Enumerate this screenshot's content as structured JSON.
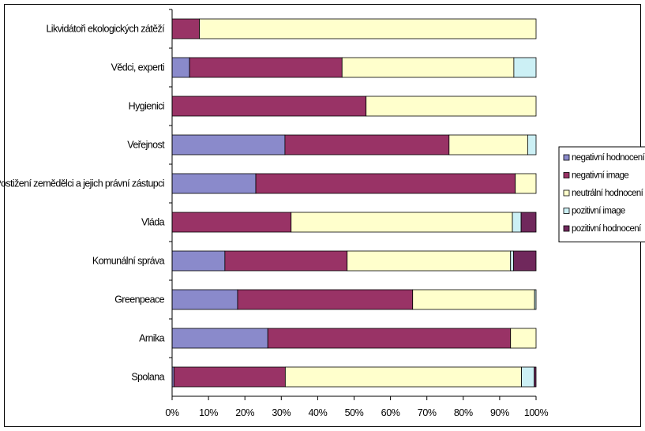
{
  "chart_data": {
    "type": "bar",
    "orientation": "horizontal",
    "stacked": "percent",
    "categories": [
      "Likvidátoři ekologických zátěží",
      "Vědci, experti",
      "Hygienici",
      "Veřejnost",
      "Postižení zemědělci a jejich právní zástupci",
      "Vláda",
      "Komunální správa",
      "Greenpeace",
      "Arnika",
      "Spolana"
    ],
    "series": [
      {
        "name": "negativní hodnocení",
        "color": "#8A8ACB",
        "values": [
          0,
          4.8,
          0,
          31,
          23,
          0,
          14.5,
          18,
          26.3,
          0.5
        ]
      },
      {
        "name": "negativní image",
        "color": "#993366",
        "values": [
          7.5,
          41.9,
          53.3,
          45.1,
          71.3,
          32.7,
          33.6,
          48.1,
          66.7,
          30.6
        ]
      },
      {
        "name": "neutrální hodnocení",
        "color": "#FFFFCC",
        "values": [
          92.5,
          47.2,
          46.7,
          21.6,
          5.7,
          60.8,
          44.9,
          33.5,
          7,
          64.9
        ]
      },
      {
        "name": "pozitivní image",
        "color": "#CCF0F5",
        "values": [
          0,
          6.1,
          0,
          2.3,
          0,
          2.4,
          0.8,
          0.4,
          0,
          3.5
        ]
      },
      {
        "name": "pozitivní hodnocení",
        "color": "#70285C",
        "values": [
          0,
          0,
          0,
          0,
          0,
          4.1,
          6.2,
          0,
          0,
          0.5
        ]
      }
    ],
    "xlim": [
      0,
      100
    ],
    "x_ticks": [
      0,
      10,
      20,
      30,
      40,
      50,
      60,
      70,
      80,
      90,
      100
    ],
    "x_tick_labels": [
      "0%",
      "10%",
      "20%",
      "30%",
      "40%",
      "50%",
      "60%",
      "70%",
      "80%",
      "90%",
      "100%"
    ],
    "title": "",
    "xlabel": "",
    "ylabel": "",
    "grid": false,
    "legend": {
      "placement": "right"
    }
  }
}
